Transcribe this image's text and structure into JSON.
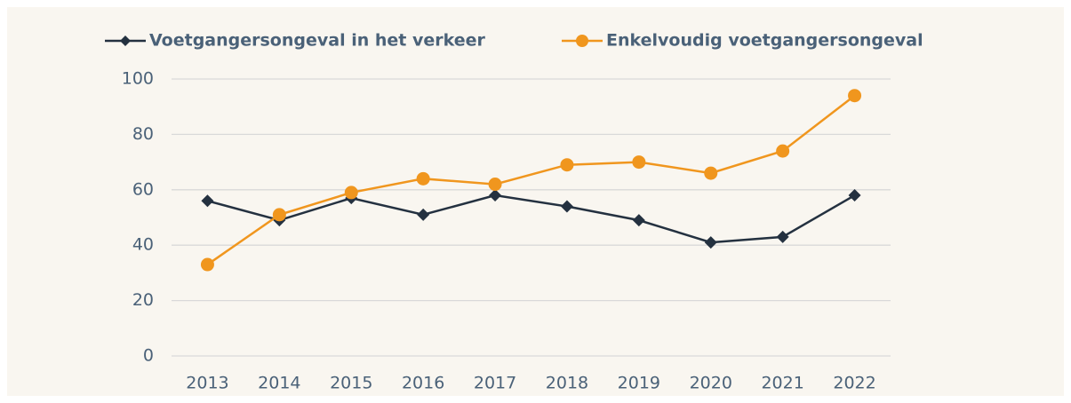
{
  "chart_data": {
    "type": "line",
    "categories": [
      "2013",
      "2014",
      "2015",
      "2016",
      "2017",
      "2018",
      "2019",
      "2020",
      "2021",
      "2022"
    ],
    "series": [
      {
        "name": "Voetgangersongeval in het verkeer",
        "color": "#243140",
        "marker": "diamond",
        "values": [
          56,
          49,
          57,
          51,
          58,
          54,
          49,
          41,
          43,
          58
        ]
      },
      {
        "name": "Enkelvoudig voetgangersongeval",
        "color": "#f0961e",
        "marker": "circle",
        "values": [
          33,
          51,
          59,
          64,
          62,
          69,
          70,
          66,
          74,
          94
        ]
      }
    ],
    "ylim": [
      0,
      100
    ],
    "yticks": [
      0,
      20,
      40,
      60,
      80,
      100
    ],
    "grid": true,
    "legend": "top"
  }
}
